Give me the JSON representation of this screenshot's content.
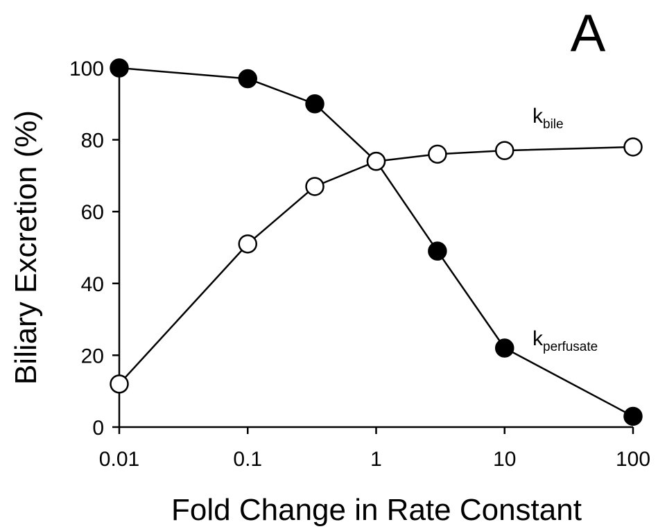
{
  "chart_data": {
    "type": "line",
    "panel_label": "A",
    "xlabel": "Fold Change in Rate Constant",
    "ylabel": "Biliary Excretion (%)",
    "x_scale": "log",
    "xlim": [
      0.01,
      100
    ],
    "ylim": [
      0,
      100
    ],
    "x_ticks": [
      0.01,
      0.1,
      1,
      10,
      100
    ],
    "x_tick_labels": [
      "0.01",
      "0.1",
      "1",
      "10",
      "100"
    ],
    "y_ticks": [
      0,
      20,
      40,
      60,
      80,
      100
    ],
    "y_tick_labels": [
      "0",
      "20",
      "40",
      "60",
      "80",
      "100"
    ],
    "grid": false,
    "series": [
      {
        "key": "k_perfusate",
        "name_main": "k",
        "name_sub": "perfusate",
        "marker": "filled-circle",
        "color": "#000000",
        "x": [
          0.01,
          0.1,
          0.333,
          1,
          3,
          10,
          100
        ],
        "y": [
          100,
          97,
          90,
          74,
          49,
          22,
          3
        ]
      },
      {
        "key": "k_bile",
        "name_main": "k",
        "name_sub": "bile",
        "marker": "open-circle",
        "color": "#000000",
        "x": [
          0.01,
          0.1,
          0.333,
          1,
          3,
          10,
          100
        ],
        "y": [
          12,
          51,
          67,
          74,
          76,
          77,
          78
        ]
      }
    ]
  }
}
